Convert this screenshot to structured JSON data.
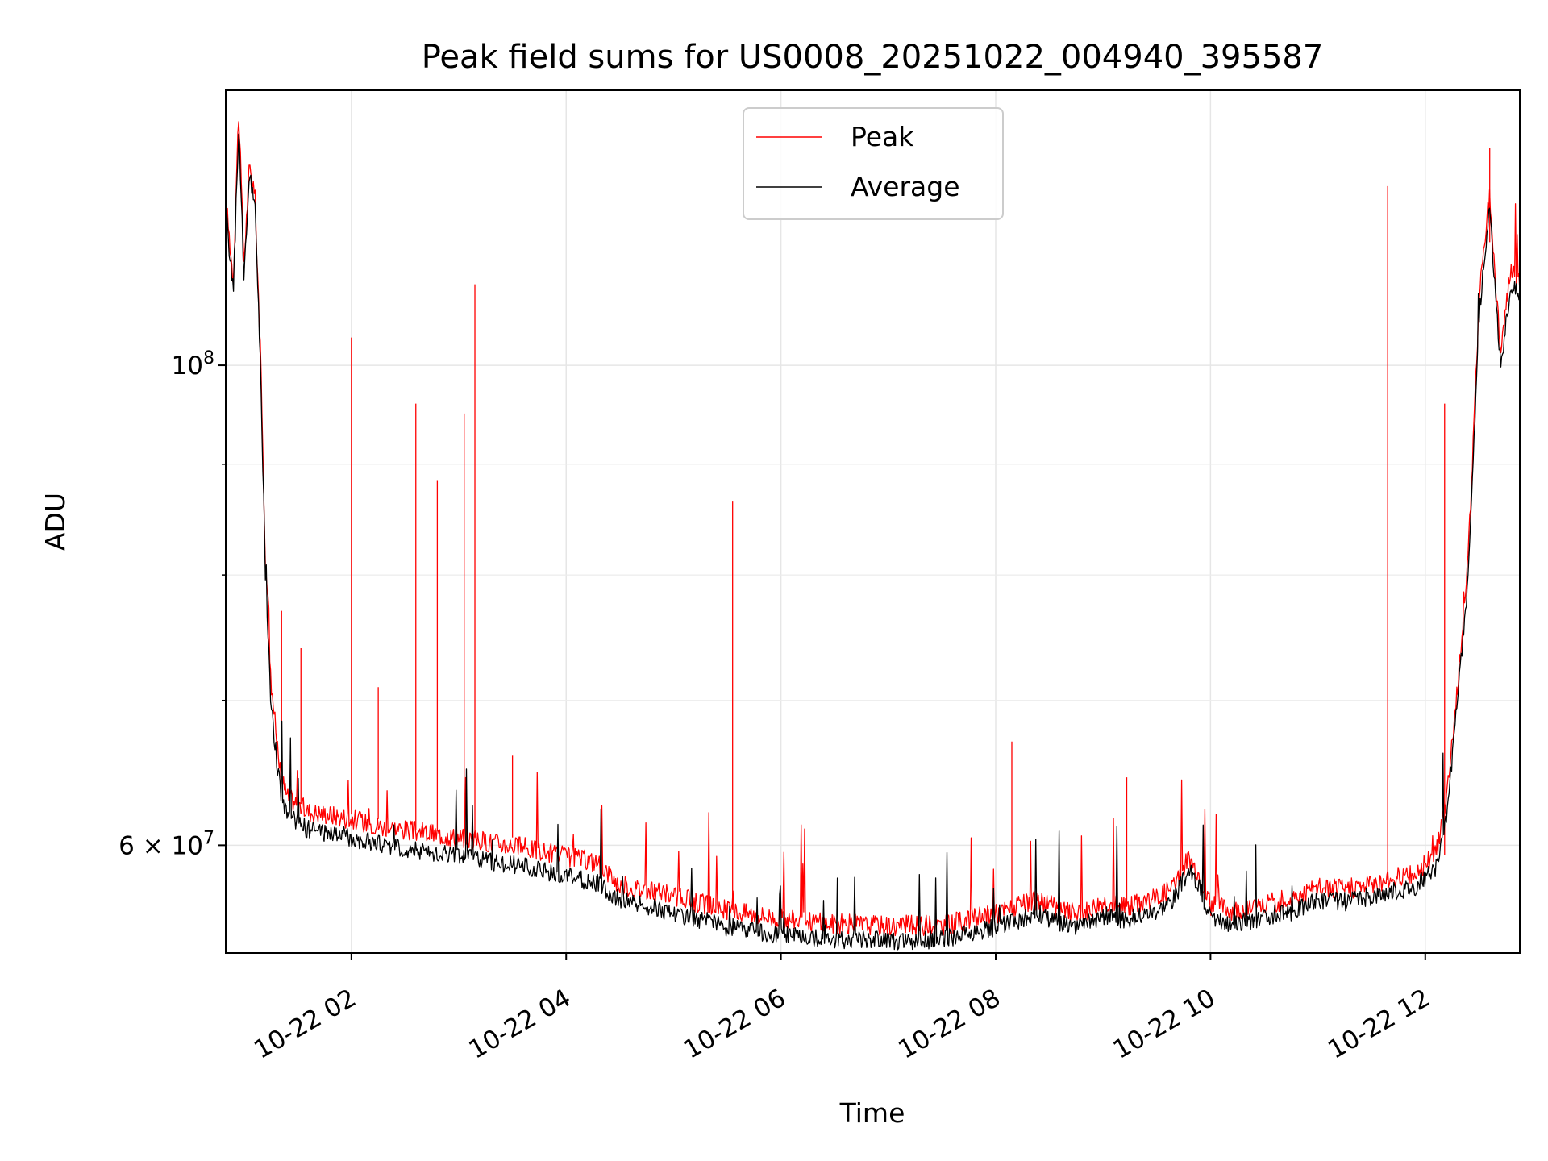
{
  "chart_data": {
    "type": "line",
    "title": "Peak field sums for US0008_20251022_004940_395587",
    "xlabel": "Time",
    "ylabel": "ADU",
    "yscale": "log",
    "ylim": [
      53500000,
      134000000
    ],
    "xlim_hours": [
      0.83,
      12.88
    ],
    "x_tick_labels": [
      "10-22 02",
      "10-22 04",
      "10-22 06",
      "10-22 08",
      "10-22 10",
      "10-22 12"
    ],
    "x_tick_hours": [
      2,
      4,
      6,
      8,
      10,
      12
    ],
    "y_major_ticks": [
      {
        "label": "10",
        "exp": "8",
        "value": 100000000
      },
      {
        "label": "6 × 10",
        "exp": "7",
        "value": 60000000
      }
    ],
    "y_minor_ticks": [
      70000000,
      80000000,
      90000000
    ],
    "grid": true,
    "legend": {
      "position": "top-center",
      "entries": [
        {
          "name": "Peak",
          "color": "#ff0000"
        },
        {
          "name": "Average",
          "color": "#000000"
        }
      ]
    },
    "series": [
      {
        "name": "Average",
        "color": "#000000",
        "x_hours": [
          0.83,
          0.9,
          0.95,
          1.0,
          1.05,
          1.1,
          1.15,
          1.2,
          1.25,
          1.3,
          1.35,
          1.4,
          1.5,
          1.6,
          1.8,
          2.0,
          2.3,
          2.5,
          3.0,
          3.5,
          4.0,
          4.3,
          4.5,
          4.9,
          5.2,
          5.5,
          6.0,
          6.5,
          7.0,
          7.5,
          7.8,
          8.0,
          8.2,
          8.4,
          8.6,
          8.8,
          9.0,
          9.2,
          9.5,
          9.65,
          9.8,
          9.9,
          10.0,
          10.2,
          10.5,
          10.8,
          11.0,
          11.3,
          11.6,
          11.9,
          12.1,
          12.2,
          12.3,
          12.4,
          12.5,
          12.55,
          12.6,
          12.65,
          12.7,
          12.8,
          12.88
        ],
        "values": [
          118000000,
          108000000,
          129000000,
          110000000,
          122000000,
          119000000,
          101000000,
          80000000,
          70000000,
          66000000,
          63000000,
          62000000,
          61500000,
          61000000,
          60800000,
          60500000,
          60000000,
          59800000,
          59300000,
          58800000,
          58000000,
          57600000,
          56600000,
          56000000,
          55500000,
          55000000,
          54500000,
          54300000,
          54200000,
          54300000,
          54700000,
          55000000,
          55400000,
          55800000,
          55200000,
          55000000,
          55700000,
          55400000,
          56000000,
          56600000,
          58400000,
          57300000,
          55500000,
          55200000,
          55500000,
          56000000,
          56600000,
          56500000,
          57000000,
          57400000,
          58500000,
          62000000,
          70000000,
          80000000,
          105000000,
          112000000,
          118000000,
          108000000,
          100000000,
          109000000,
          107500000
        ]
      },
      {
        "name": "Peak",
        "color": "#ff0000",
        "x_hours": [
          0.83,
          0.9,
          0.95,
          1.0,
          1.05,
          1.1,
          1.15,
          1.2,
          1.25,
          1.3,
          1.35,
          1.4,
          1.5,
          1.6,
          1.8,
          2.0,
          2.3,
          2.5,
          3.0,
          3.5,
          4.0,
          4.3,
          4.5,
          4.9,
          5.2,
          5.5,
          6.0,
          6.5,
          7.0,
          7.5,
          7.8,
          8.0,
          8.2,
          8.4,
          8.6,
          8.8,
          9.0,
          9.2,
          9.5,
          9.65,
          9.8,
          9.9,
          10.0,
          10.2,
          10.5,
          10.8,
          11.0,
          11.3,
          11.6,
          11.9,
          12.1,
          12.2,
          12.3,
          12.4,
          12.5,
          12.55,
          12.6,
          12.65,
          12.7,
          12.8,
          12.88
        ],
        "values": [
          119500000,
          109500000,
          131000000,
          111500000,
          123500000,
          120500000,
          102500000,
          81500000,
          71500000,
          67500000,
          64500000,
          63200000,
          62700000,
          62200000,
          62000000,
          61700000,
          61200000,
          61000000,
          60500000,
          60000000,
          59300000,
          58900000,
          57500000,
          57000000,
          56500000,
          56000000,
          55500000,
          55200000,
          55100000,
          55100000,
          55500000,
          55800000,
          56200000,
          56600000,
          56000000,
          55800000,
          56500000,
          56200000,
          56800000,
          57400000,
          59200000,
          58100000,
          56300000,
          56000000,
          56300000,
          56800000,
          57400000,
          57300000,
          57800000,
          58200000,
          59400000,
          63000000,
          71000000,
          81500000,
          107000000,
          114000000,
          120000000,
          110000000,
          102000000,
          111000000,
          109000000
        ]
      }
    ],
    "spikes_peak": [
      {
        "hour": 1.35,
        "value": 77000000
      },
      {
        "hour": 1.53,
        "value": 74000000
      },
      {
        "hour": 2.0,
        "value": 103000000
      },
      {
        "hour": 2.25,
        "value": 71000000
      },
      {
        "hour": 2.6,
        "value": 96000000
      },
      {
        "hour": 2.8,
        "value": 88500000
      },
      {
        "hour": 3.05,
        "value": 95000000
      },
      {
        "hour": 3.15,
        "value": 109000000
      },
      {
        "hour": 3.5,
        "value": 66000000
      },
      {
        "hour": 5.55,
        "value": 86500000
      },
      {
        "hour": 8.15,
        "value": 67000000
      },
      {
        "hour": 9.22,
        "value": 64500000
      },
      {
        "hour": 11.65,
        "value": 121000000
      },
      {
        "hour": 12.18,
        "value": 96000000
      },
      {
        "hour": 12.6,
        "value": 126000000
      }
    ]
  }
}
